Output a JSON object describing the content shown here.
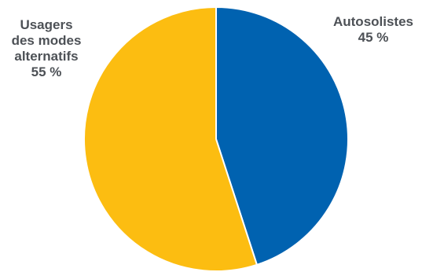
{
  "chart_data": {
    "type": "pie",
    "title": "",
    "slices": [
      {
        "label_lines": [
          "Autosolistes"
        ],
        "value": 45,
        "value_label": "45 %",
        "color": "#0062b0"
      },
      {
        "label_lines": [
          "Usagers",
          "des modes",
          "alternatifs"
        ],
        "value": 55,
        "value_label": "55 %",
        "color": "#fcbd11"
      }
    ],
    "start_angle": "12 o'clock",
    "direction": "clockwise"
  }
}
